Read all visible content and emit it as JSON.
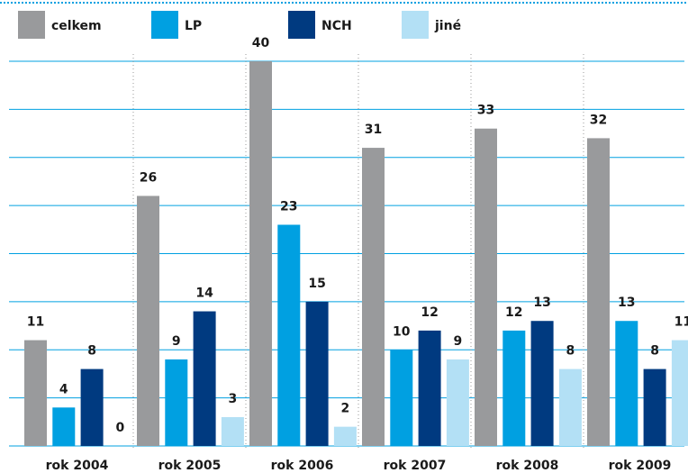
{
  "chart_data": {
    "type": "bar",
    "categories": [
      "rok 2004",
      "rok 2005",
      "rok 2006",
      "rok 2007",
      "rok 2008",
      "rok 2009"
    ],
    "series": [
      {
        "name": "celkem",
        "color": "#999a9c",
        "values": [
          11,
          26,
          40,
          31,
          33,
          32
        ]
      },
      {
        "name": "LP",
        "color": "#00a0e1",
        "values": [
          4,
          9,
          23,
          10,
          12,
          13
        ]
      },
      {
        "name": "NCH",
        "color": "#003a80",
        "values": [
          8,
          14,
          15,
          12,
          13,
          8
        ]
      },
      {
        "name": "jiné",
        "color": "#b3e0f5",
        "values": [
          0,
          3,
          2,
          9,
          8,
          11
        ]
      }
    ],
    "ylim": [
      0,
      40
    ],
    "yticks": [
      0,
      5,
      10,
      15,
      20,
      25,
      30,
      35,
      40
    ],
    "grid": true
  }
}
